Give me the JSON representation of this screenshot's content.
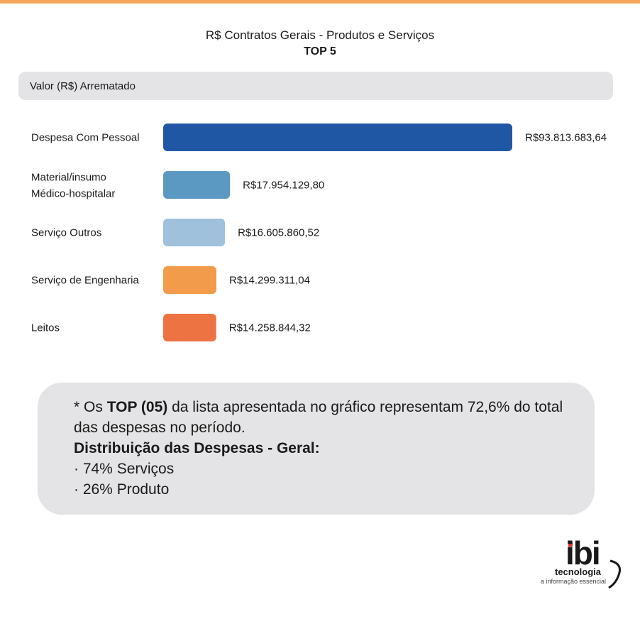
{
  "header": {
    "title": "R$ Contratos Gerais - Produtos e Serviços",
    "subtitle": "TOP 5"
  },
  "legend": {
    "label": "Valor (R$) Arrematado"
  },
  "chart_data": {
    "type": "bar",
    "orientation": "horizontal",
    "title": "R$ Contratos Gerais - Produtos e Serviços",
    "subtitle": "TOP 5",
    "series_name": "Valor (R$) Arrematado",
    "categories": [
      "Despesa Com Pessoal",
      "Material/insumo\nMédico-hospitalar",
      "Serviço Outros",
      "Serviço de Engenharia",
      "Leitos"
    ],
    "values": [
      93813683.64,
      17954129.8,
      16605860.52,
      14299311.04,
      14258844.32
    ],
    "value_labels": [
      "R$93.813.683,64",
      "R$17.954.129,80",
      "R$16.605.860,52",
      "R$14.299.311,04",
      "R$14.258.844,32"
    ],
    "colors": [
      "#1f57a5",
      "#5b98c2",
      "#9fc1dc",
      "#f29b4b",
      "#ee7343"
    ],
    "xlim": [
      0,
      93813683.64
    ]
  },
  "note": {
    "prefix": "* Os ",
    "bold_top": "TOP (05)",
    "rest": " da lista apresentada no gráfico representam 72,6% do total das despesas no período.",
    "heading": "Distribuição das Despesas - Geral:",
    "items": [
      "· 74% Serviços",
      "· 26% Produto"
    ]
  },
  "logo": {
    "name": "ibi",
    "sub": "tecnologia",
    "tagline": "a informação essencial"
  }
}
